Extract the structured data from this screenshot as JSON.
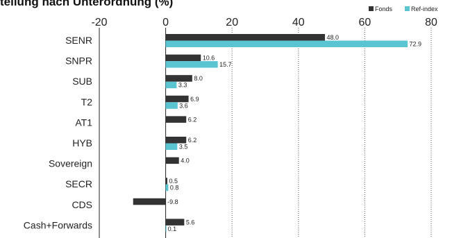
{
  "chart_data": {
    "type": "bar",
    "orientation": "horizontal",
    "title": "tellung nach Unterordnung (%)",
    "categories": [
      "SENR",
      "SNPR",
      "SUB",
      "T2",
      "AT1",
      "HYB",
      "Sovereign",
      "SECR",
      "CDS",
      "Cash+Forwards"
    ],
    "series": [
      {
        "name": "Fonds",
        "color": "#333333",
        "values": [
          48.0,
          10.6,
          8.0,
          6.9,
          6.2,
          6.2,
          4.0,
          0.5,
          -9.8,
          5.6
        ],
        "labels": [
          "48.0",
          "10.6",
          "8.0",
          "6.9",
          "6.2",
          "6.2",
          "4.0",
          "0.5",
          "-9.8",
          "5.6"
        ]
      },
      {
        "name": "Ref-index",
        "color": "#5bc4d1",
        "values": [
          72.9,
          15.7,
          3.3,
          3.6,
          null,
          3.5,
          null,
          0.8,
          null,
          0.1
        ],
        "labels": [
          "72.9",
          "15.7",
          "3.3",
          "3.6",
          null,
          "3.5",
          null,
          "0.8",
          null,
          "0.1"
        ]
      }
    ],
    "xlim": [
      -20,
      80
    ],
    "xticks": [
      -20,
      0,
      20,
      40,
      60,
      80
    ],
    "xtick_labels": [
      "-20",
      "0",
      "20",
      "40",
      "60",
      "80"
    ],
    "grid": "vertical-dotted",
    "legend_position": "top-right"
  }
}
